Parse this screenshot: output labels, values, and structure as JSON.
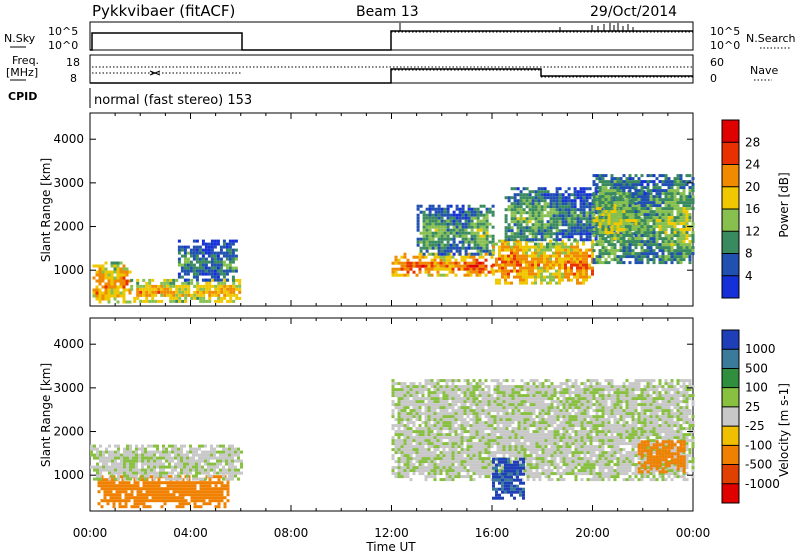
{
  "header": {
    "radar": "Pykkvibaer (fitACF)",
    "beam": "Beam 13",
    "date": "29/Oct/2014"
  },
  "aux": {
    "nsky_label": "N.Sky",
    "nsearch_label": "N.Search",
    "freq_label_1": "Freq.",
    "freq_label_2": "[MHz]",
    "nave_label": "Nave",
    "cpid_label": "CPID",
    "cpid_text": "normal (fast stereo) 153",
    "noise_left_top": "10^5",
    "noise_left_bottom": "10^0",
    "noise_right_top": "10^5",
    "noise_right_bottom": "10^0",
    "freq_tick_top": "18",
    "freq_tick_bottom": "8",
    "nave_tick_top": "60",
    "nave_tick_bottom": "0"
  },
  "chart_data": [
    {
      "type": "heatmap",
      "name": "power",
      "ylabel": "Slant Range [km]",
      "xlabel": "",
      "yticks": [
        "1000",
        "2000",
        "3000",
        "4000"
      ],
      "ylim": [
        180,
        4600
      ],
      "xlim_hours": [
        0,
        24
      ],
      "colorbar": {
        "label": "Power [dB]",
        "ticks": [
          "4",
          "8",
          "12",
          "16",
          "20",
          "24",
          "28"
        ],
        "range": [
          0,
          32
        ],
        "colors": [
          "#1530d8",
          "#2050b0",
          "#3a8a60",
          "#88c050",
          "#f0c800",
          "#f08a00",
          "#e83000",
          "#e00000"
        ]
      },
      "regions": [
        {
          "t": [
            0.1,
            1.6
          ],
          "r": [
            300,
            1200
          ],
          "level": 20
        },
        {
          "t": [
            1.6,
            6.0
          ],
          "r": [
            300,
            800
          ],
          "level": 18
        },
        {
          "t": [
            3.5,
            5.8
          ],
          "r": [
            800,
            1700
          ],
          "level": 8
        },
        {
          "t": [
            12.0,
            16.0
          ],
          "r": [
            900,
            1400
          ],
          "level": 22
        },
        {
          "t": [
            13.0,
            16.0
          ],
          "r": [
            1400,
            2500
          ],
          "level": 10
        },
        {
          "t": [
            16.0,
            20.0
          ],
          "r": [
            700,
            1700
          ],
          "level": 20
        },
        {
          "t": [
            16.5,
            22.0
          ],
          "r": [
            1700,
            2900
          ],
          "level": 10
        },
        {
          "t": [
            20.0,
            24.0
          ],
          "r": [
            1200,
            3200
          ],
          "level": 12
        }
      ]
    },
    {
      "type": "heatmap",
      "name": "velocity",
      "ylabel": "Slant Range [km]",
      "xlabel": "Time UT",
      "yticks": [
        "1000",
        "2000",
        "3000",
        "4000"
      ],
      "xticks": [
        "00:00",
        "04:00",
        "08:00",
        "12:00",
        "16:00",
        "20:00",
        "00:00"
      ],
      "ylim": [
        180,
        4600
      ],
      "xlim_hours": [
        0,
        24
      ],
      "colorbar": {
        "label": "Velocity [m s-1]",
        "ticks": [
          "1000",
          "500",
          "100",
          "25",
          "-25",
          "-100",
          "-500",
          "-1000"
        ],
        "colors": [
          "#1f3fb8",
          "#3a7a9a",
          "#2f8f3f",
          "#88c040",
          "#c8c8c8",
          "#f0c000",
          "#f08000",
          "#e04000",
          "#e00000"
        ]
      },
      "regions": [
        {
          "t": [
            0.3,
            5.5
          ],
          "r": [
            300,
            1000
          ],
          "velocity": -200
        },
        {
          "t": [
            0.0,
            6.0
          ],
          "r": [
            900,
            1700
          ],
          "velocity": 0
        },
        {
          "t": [
            12.0,
            24.0
          ],
          "r": [
            900,
            3200
          ],
          "velocity": 0
        },
        {
          "t": [
            16.0,
            17.2
          ],
          "r": [
            500,
            1400
          ],
          "velocity": 600
        },
        {
          "t": [
            21.8,
            23.6
          ],
          "r": [
            1100,
            1800
          ],
          "velocity": -200
        }
      ]
    }
  ]
}
